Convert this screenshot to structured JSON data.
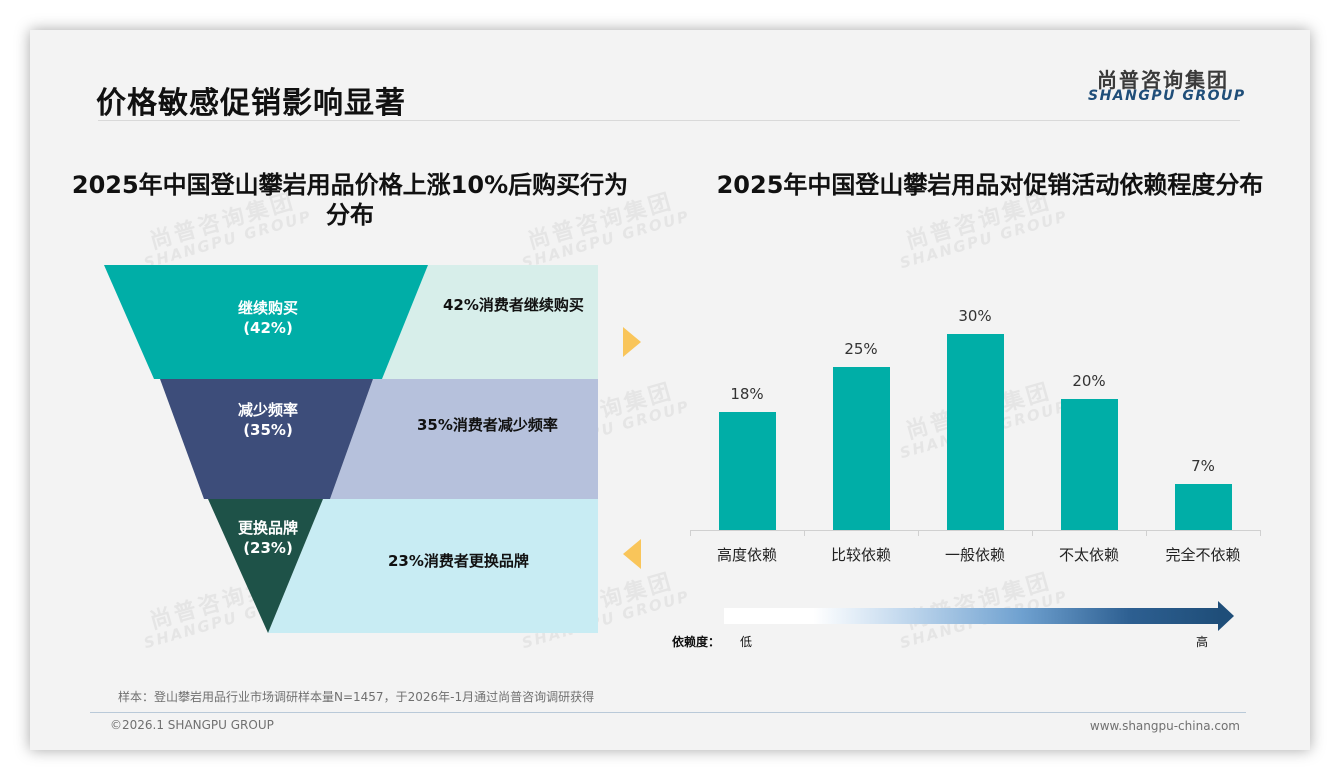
{
  "header": {
    "page_title": "价格敏感促销影响显著",
    "logo_cn": "尚普咨询集团",
    "logo_en": "SHANGPU GROUP"
  },
  "watermark": {
    "cn": "尚普咨询集团",
    "en": "SHANGPU GROUP"
  },
  "colors": {
    "teal": "#00aea7",
    "navy": "#3d4d7a",
    "dark_green": "#1e5248",
    "light_teal": "#d7eeea",
    "light_lavender": "#b6c1dc",
    "light_cyan": "#c8ecf3",
    "arrow_yellow": "#f9c55a",
    "gradient_dark": "#1f4e79"
  },
  "chart_data": [
    {
      "type": "funnel",
      "title": "2025年中国登山攀岩用品价格上涨10%后购买行为分布",
      "title_line1": "2025年中国登山攀岩用品价格上涨10%后购买行为",
      "title_line2": "分布",
      "categories": [
        "继续购买",
        "减少频率",
        "更换品牌"
      ],
      "values": [
        42,
        35,
        23
      ],
      "unit": "%",
      "segments": [
        {
          "name": "继续购买",
          "value_label": "(42%)",
          "description": "42%消费者继续购买",
          "color": "#00aea7",
          "panel_color": "#d7eeea"
        },
        {
          "name": "减少频率",
          "value_label": "(35%)",
          "description": "35%消费者减少频率",
          "color": "#3d4d7a",
          "panel_color": "#b6c1dc"
        },
        {
          "name": "更换品牌",
          "value_label": "(23%)",
          "description": "23%消费者更换品牌",
          "color": "#1e5248",
          "panel_color": "#c8ecf3"
        }
      ]
    },
    {
      "type": "bar",
      "title": "2025年中国登山攀岩用品对促销活动依赖程度分布",
      "categories": [
        "高度依赖",
        "比较依赖",
        "一般依赖",
        "不太依赖",
        "完全不依赖"
      ],
      "values": [
        18,
        25,
        30,
        20,
        7
      ],
      "value_labels": [
        "18%",
        "25%",
        "30%",
        "20%",
        "7%"
      ],
      "unit": "%",
      "xlabel": "",
      "ylabel": "",
      "ylim": [
        0,
        30
      ],
      "grid": false,
      "legend": null,
      "bar_color": "#00aea7",
      "scale": {
        "label": "依赖度：",
        "low": "低",
        "high": "高"
      }
    }
  ],
  "footer": {
    "footnote": "样本：登山攀岩用品行业市场调研样本量N=1457，于2026年-1月通过尚普咨询调研获得",
    "copyright": "©2026.1 SHANGPU GROUP",
    "website": "www.shangpu-china.com"
  }
}
